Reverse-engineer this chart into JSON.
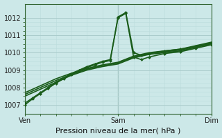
{
  "bg_color": "#cce8e8",
  "grid_major_color": "#aacccc",
  "grid_minor_color": "#bbdddd",
  "line_color": "#1a5c1a",
  "xtick_labels": [
    "Ven",
    "Sam",
    "Dim"
  ],
  "xtick_positions": [
    0,
    12,
    24
  ],
  "xlim": [
    0,
    24
  ],
  "ylim": [
    1006.5,
    1012.8
  ],
  "yticks": [
    1007,
    1008,
    1009,
    1010,
    1011,
    1012
  ],
  "lines": [
    {
      "x": [
        0,
        2,
        4,
        6,
        8,
        10,
        12,
        14,
        16,
        18,
        20,
        22,
        24
      ],
      "y": [
        1007.5,
        1007.9,
        1008.3,
        1008.7,
        1009.0,
        1009.2,
        1009.35,
        1009.7,
        1009.9,
        1010.0,
        1010.1,
        1010.3,
        1010.5
      ],
      "marker": false,
      "lw": 1.2
    },
    {
      "x": [
        0,
        2,
        4,
        6,
        8,
        10,
        12,
        14,
        16,
        18,
        20,
        22,
        24
      ],
      "y": [
        1007.6,
        1008.0,
        1008.4,
        1008.75,
        1009.05,
        1009.25,
        1009.4,
        1009.75,
        1009.95,
        1010.05,
        1010.15,
        1010.35,
        1010.55
      ],
      "marker": false,
      "lw": 1.2
    },
    {
      "x": [
        0,
        2,
        4,
        6,
        8,
        10,
        12,
        14,
        16,
        18,
        20,
        22,
        24
      ],
      "y": [
        1007.7,
        1008.1,
        1008.5,
        1008.82,
        1009.1,
        1009.3,
        1009.45,
        1009.8,
        1010.0,
        1010.1,
        1010.2,
        1010.4,
        1010.6
      ],
      "marker": false,
      "lw": 1.2
    },
    {
      "x": [
        0,
        1,
        2,
        3,
        4,
        5,
        6,
        7,
        8,
        9,
        10,
        11,
        12,
        13,
        14,
        15,
        16,
        18,
        20,
        22,
        24
      ],
      "y": [
        1007.1,
        1007.4,
        1007.7,
        1008.0,
        1008.3,
        1008.55,
        1008.8,
        1009.0,
        1009.2,
        1009.35,
        1009.5,
        1009.6,
        1012.05,
        1012.3,
        1010.0,
        1009.85,
        1009.95,
        1010.1,
        1010.2,
        1010.35,
        1010.55
      ],
      "marker": true,
      "lw": 1.2
    },
    {
      "x": [
        0,
        1,
        2,
        3,
        4,
        5,
        6,
        7,
        8,
        9,
        10,
        11,
        12,
        13,
        14,
        15,
        16,
        18,
        20,
        22,
        24
      ],
      "y": [
        1007.0,
        1007.35,
        1007.65,
        1007.95,
        1008.25,
        1008.5,
        1008.75,
        1008.95,
        1009.15,
        1009.3,
        1009.45,
        1009.55,
        1012.0,
        1012.25,
        1009.75,
        1009.6,
        1009.75,
        1009.95,
        1010.05,
        1010.25,
        1010.45
      ],
      "marker": true,
      "lw": 1.2
    }
  ],
  "vlines": [
    0,
    12,
    24
  ],
  "xlabel": "Pression niveau de la mer( hPa )",
  "xlabel_fontsize": 8,
  "tick_fontsize": 7
}
